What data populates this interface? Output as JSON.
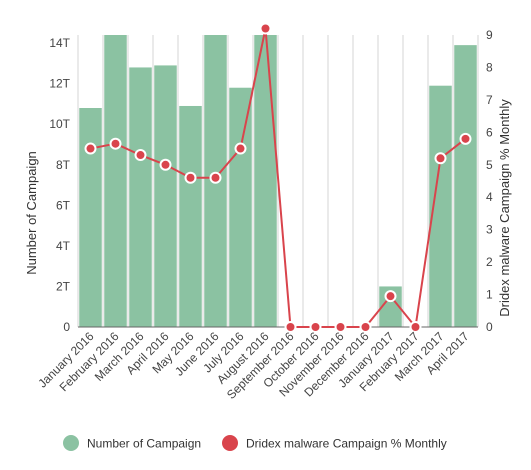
{
  "chart_data": {
    "type": "bar",
    "categories": [
      "January 2016",
      "February 2016",
      "March 2016",
      "April 2016",
      "May 2016",
      "June 2016",
      "July 2016",
      "August 2016",
      "September 2016",
      "October 2016",
      "November 2016",
      "December 2016",
      "January 2017",
      "February 2017",
      "March 2017",
      "April 2017"
    ],
    "series": [
      {
        "name": "Number of Campaign",
        "kind": "bar",
        "axis": "left",
        "color": "#8bc2a2",
        "values": [
          10.8,
          14.4,
          12.8,
          12.9,
          10.9,
          14.4,
          11.8,
          14.4,
          0,
          0,
          0,
          0,
          2,
          0,
          11.9,
          13.9
        ]
      },
      {
        "name": "Dridex malware Campaign % Monthly",
        "kind": "line",
        "axis": "right",
        "color": "#d9444c",
        "values": [
          5.5,
          5.65,
          5.3,
          5.0,
          4.6,
          4.6,
          5.5,
          9.2,
          0,
          0,
          0,
          0,
          0.95,
          0,
          5.2,
          5.8
        ]
      }
    ],
    "ylabel": "Number of Campaign",
    "y2label": "Dridex malware Campaign % Monthly",
    "ylim": [
      0,
      14.4
    ],
    "y2lim": [
      0,
      9
    ],
    "yticks": [
      "0",
      "2T",
      "4T",
      "6T",
      "8T",
      "10T",
      "12T",
      "14T"
    ],
    "y2ticks": [
      "0",
      "1",
      "2",
      "3",
      "4",
      "5",
      "6",
      "7",
      "8",
      "9"
    ],
    "grid": "vertical",
    "legend": "bottom-center"
  }
}
